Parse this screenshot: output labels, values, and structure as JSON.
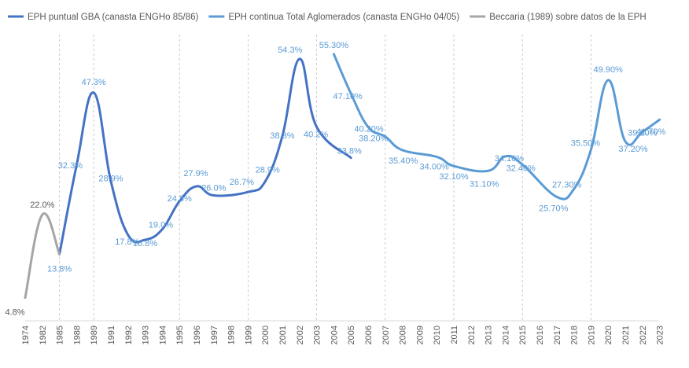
{
  "chart_data": {
    "type": "line",
    "title": "",
    "xlabel": "",
    "ylabel": "",
    "ylim": [
      0,
      60
    ],
    "grid": "vertical-dashed-at-selected-years",
    "legend_position": "top",
    "categories": [
      "1974",
      "1982",
      "1985",
      "1988",
      "1989",
      "1991",
      "1992",
      "1993",
      "1994",
      "1995",
      "1996",
      "1997",
      "1998",
      "1999",
      "2000",
      "2001",
      "2002",
      "2003",
      "2004",
      "2005",
      "2006",
      "2007",
      "2008",
      "2009",
      "2010",
      "2011",
      "2012",
      "2013",
      "2014",
      "2015",
      "2016",
      "2017",
      "2018",
      "2019",
      "2020",
      "2021",
      "2022",
      "2023"
    ],
    "gridline_years": [
      "1985",
      "1989",
      "1995",
      "1999",
      "2003",
      "2007",
      "2011",
      "2015",
      "2019"
    ],
    "series": [
      {
        "name": "EPH puntual GBA (canasta ENGHo 85/86)",
        "color": "#4472c4",
        "points": [
          {
            "x": "1985",
            "y": 13.8,
            "label": "13.8%"
          },
          {
            "x": "1988",
            "y": 32.3,
            "label": "32.3%"
          },
          {
            "x": "1989",
            "y": 47.3,
            "label": "47.3%"
          },
          {
            "x": "1991",
            "y": 28.9,
            "label": "28.9%"
          },
          {
            "x": "1992",
            "y": 17.8,
            "label": "17.8%"
          },
          {
            "x": "1993",
            "y": 16.8,
            "label": "16.8%"
          },
          {
            "x": "1994",
            "y": 19.0,
            "label": "19.0%"
          },
          {
            "x": "1995",
            "y": 24.8,
            "label": "24.8%"
          },
          {
            "x": "1996",
            "y": 27.9,
            "label": "27.9%"
          },
          {
            "x": "1997",
            "y": 26.0,
            "label": "26.0%"
          },
          {
            "x": "1999",
            "y": 26.7,
            "label": "26.7%"
          },
          {
            "x": "2000",
            "y": 28.9,
            "label": "28.9%"
          },
          {
            "x": "2001",
            "y": 38.3,
            "label": "38.3%"
          },
          {
            "x": "2002",
            "y": 54.3,
            "label": "54.3%"
          },
          {
            "x": "2003",
            "y": 40.2,
            "label": "40.2%"
          },
          {
            "x": "2005",
            "y": 33.8,
            "label": "33.8%"
          }
        ]
      },
      {
        "name": "EPH continua Total Aglomerados (canasta ENGHo 04/05)",
        "color": "#5b9bd5",
        "points": [
          {
            "x": "2004",
            "y": 55.3,
            "label": "55.30%"
          },
          {
            "x": "2005",
            "y": 47.1,
            "label": "47.10%"
          },
          {
            "x": "2006",
            "y": 40.2,
            "label": "40.20%"
          },
          {
            "x": "2007",
            "y": 38.2,
            "label": "38.20%"
          },
          {
            "x": "2008",
            "y": 35.4,
            "label": "35.40%"
          },
          {
            "x": "2010",
            "y": 34.0,
            "label": "34.00%"
          },
          {
            "x": "2011",
            "y": 32.1,
            "label": "32.10%"
          },
          {
            "x": "2013",
            "y": 31.1,
            "label": "31.10%"
          },
          {
            "x": "2014",
            "y": 34.1,
            "label": "34.10%"
          },
          {
            "x": "2015",
            "y": 32.4,
            "label": "32.40%"
          },
          {
            "x": "2017",
            "y": 25.7,
            "label": "25.70%"
          },
          {
            "x": "2018",
            "y": 27.3,
            "label": "27.30%"
          },
          {
            "x": "2019",
            "y": 35.5,
            "label": "35.50%"
          },
          {
            "x": "2020",
            "y": 49.9,
            "label": "49.90%"
          },
          {
            "x": "2021",
            "y": 37.2,
            "label": "37.20%"
          },
          {
            "x": "2022",
            "y": 39.2,
            "label": "39.20%"
          },
          {
            "x": "2023",
            "y": 41.7,
            "label": "41.70%"
          }
        ]
      },
      {
        "name": "Beccaria (1989) sobre datos de la EPH",
        "color": "#a5a5a5",
        "points": [
          {
            "x": "1974",
            "y": 4.8,
            "label": "4.8%"
          },
          {
            "x": "1982",
            "y": 22.0,
            "label": "22.0%"
          },
          {
            "x": "1985",
            "y": 13.8,
            "label": ""
          }
        ]
      }
    ]
  }
}
